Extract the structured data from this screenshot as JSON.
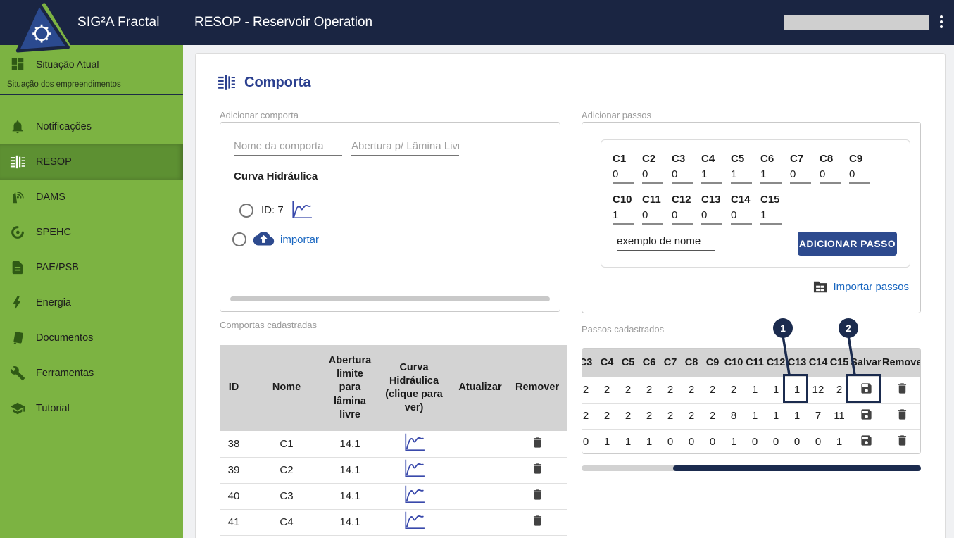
{
  "header": {
    "app_title": "SIG²A Fractal",
    "page_title": "RESOP - Reservoir Operation"
  },
  "sidebar": {
    "primary_item": {
      "label": "Situação Atual",
      "icon": "dashboard-icon"
    },
    "caption": "Situação dos empreendimentos",
    "items": [
      {
        "label": "Notificações",
        "icon": "bell-icon",
        "active": false
      },
      {
        "label": "RESOP",
        "icon": "gate-icon",
        "active": true
      },
      {
        "label": "DAMS",
        "icon": "dam-icon",
        "active": false
      },
      {
        "label": "SPEHC",
        "icon": "swirl-icon",
        "active": false
      },
      {
        "label": "PAE/PSB",
        "icon": "file-icon",
        "active": false
      },
      {
        "label": "Energia",
        "icon": "bolt-icon",
        "active": false
      },
      {
        "label": "Documentos",
        "icon": "documents-icon",
        "active": false
      },
      {
        "label": "Ferramentas",
        "icon": "wrench-icon",
        "active": false
      },
      {
        "label": "Tutorial",
        "icon": "graduation-cap-icon",
        "active": false
      }
    ]
  },
  "main": {
    "section_title": "Comporta",
    "add_comporta": {
      "panel_label": "Adicionar comporta",
      "name_placeholder": "Nome da comporta",
      "abertura_placeholder": "Abertura p/ Lâmina Livr",
      "curve_heading": "Curva Hidráulica",
      "curve_option_label": "ID: 7",
      "import_option_label": "importar"
    },
    "add_passos": {
      "panel_label": "Adicionar passos",
      "fields": [
        {
          "name": "C1",
          "value": "0"
        },
        {
          "name": "C2",
          "value": "0"
        },
        {
          "name": "C3",
          "value": "0"
        },
        {
          "name": "C4",
          "value": "1"
        },
        {
          "name": "C5",
          "value": "1"
        },
        {
          "name": "C6",
          "value": "1"
        },
        {
          "name": "C7",
          "value": "0"
        },
        {
          "name": "C8",
          "value": "0"
        },
        {
          "name": "C9",
          "value": "0"
        },
        {
          "name": "C10",
          "value": "1"
        },
        {
          "name": "C11",
          "value": "0"
        },
        {
          "name": "C12",
          "value": "0"
        },
        {
          "name": "C13",
          "value": "0"
        },
        {
          "name": "C14",
          "value": "0"
        },
        {
          "name": "C15",
          "value": "1"
        }
      ],
      "step_name_value": "exemplo de nome",
      "add_button_label": "ADICIONAR PASSO",
      "import_link_label": "Importar passos"
    },
    "comportas_table": {
      "panel_label": "Comportas cadastradas",
      "headers": [
        "ID",
        "Nome",
        "Abertura limite para lâmina livre",
        "Curva Hidráulica (clique para ver)",
        "Atualizar",
        "Remover"
      ],
      "rows": [
        {
          "id": "38",
          "nome": "C1",
          "abertura": "14.1"
        },
        {
          "id": "39",
          "nome": "C2",
          "abertura": "14.1"
        },
        {
          "id": "40",
          "nome": "C3",
          "abertura": "14.1"
        },
        {
          "id": "41",
          "nome": "C4",
          "abertura": "14.1"
        }
      ]
    },
    "passos_table": {
      "panel_label": "Passos cadastrados",
      "visible_headers": [
        "C3",
        "C4",
        "C5",
        "C6",
        "C7",
        "C8",
        "C9",
        "C10",
        "C11",
        "C12",
        "C13",
        "C14",
        "C15",
        "Salvar",
        "Remover"
      ],
      "rows": [
        [
          "2",
          "2",
          "2",
          "2",
          "2",
          "2",
          "2",
          "2",
          "1",
          "1",
          "1",
          "12",
          "2"
        ],
        [
          "2",
          "2",
          "2",
          "2",
          "2",
          "2",
          "2",
          "8",
          "1",
          "1",
          "1",
          "7",
          "11"
        ],
        [
          "0",
          "1",
          "1",
          "1",
          "0",
          "0",
          "0",
          "1",
          "0",
          "0",
          "0",
          "0",
          "1"
        ]
      ],
      "annotations": [
        {
          "number": "1"
        },
        {
          "number": "2"
        }
      ]
    }
  },
  "colors": {
    "header_navy": "#1a2542",
    "sidebar_green": "#7cb342",
    "sidebar_active_green": "#5d9032",
    "accent_indigo": "#2a3f8f",
    "button_blue": "#2d4a8e",
    "link_blue": "#1866c0",
    "badge_navy": "#1b2b4e",
    "table_header_gray": "#d3d3d3"
  }
}
